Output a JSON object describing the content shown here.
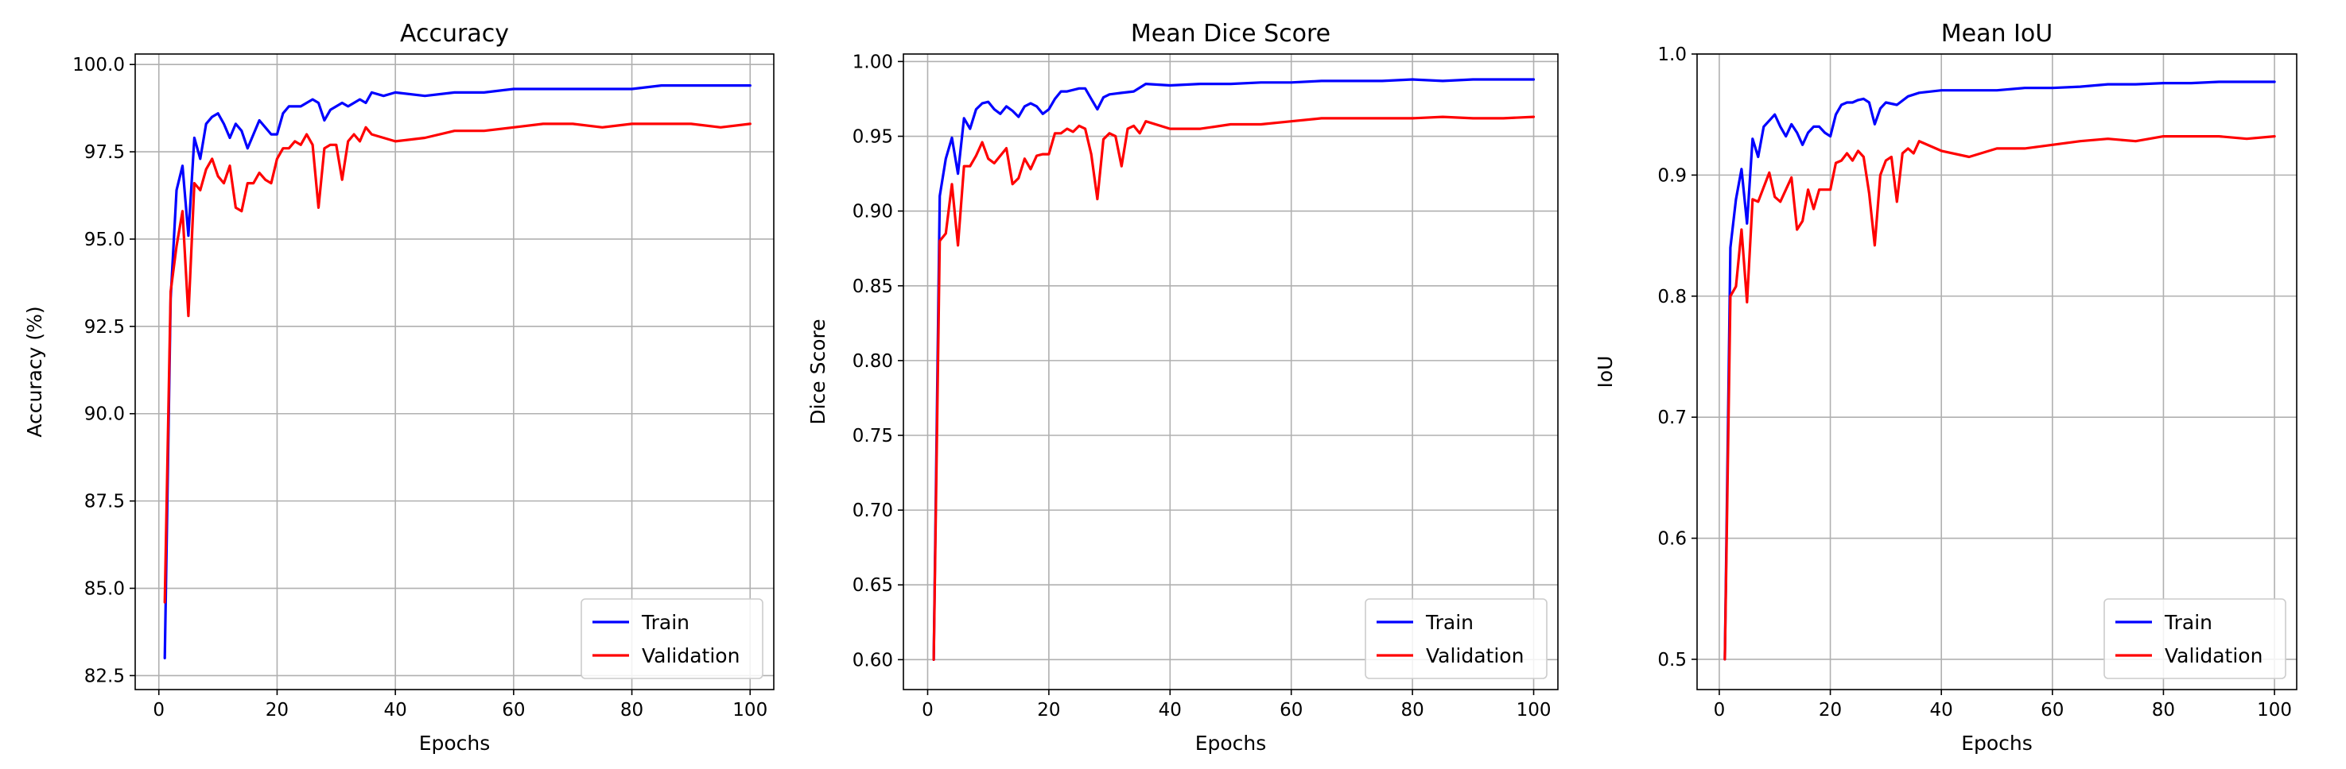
{
  "chart_data": [
    {
      "type": "line",
      "title": "Accuracy",
      "xlabel": "Epochs",
      "ylabel": "Accuracy (%)",
      "xlim": [
        -4,
        104
      ],
      "ylim": [
        82.1,
        100.3
      ],
      "xticks": [
        0,
        20,
        40,
        60,
        80,
        100
      ],
      "xtick_labels": [
        "0",
        "20",
        "40",
        "60",
        "80",
        "100"
      ],
      "yticks": [
        82.5,
        85.0,
        87.5,
        90.0,
        92.5,
        95.0,
        97.5,
        100.0
      ],
      "ytick_labels": [
        "82.5",
        "85.0",
        "87.5",
        "90.0",
        "92.5",
        "95.0",
        "97.5",
        "100.0"
      ],
      "grid": true,
      "legend_position": "lower-right",
      "series": [
        {
          "name": "Train",
          "color": "#0000ff",
          "x": [
            1,
            2,
            3,
            4,
            5,
            6,
            7,
            8,
            9,
            10,
            11,
            12,
            13,
            14,
            15,
            16,
            17,
            18,
            19,
            20,
            21,
            22,
            23,
            24,
            25,
            26,
            27,
            28,
            29,
            30,
            31,
            32,
            33,
            34,
            35,
            36,
            38,
            40,
            45,
            50,
            55,
            60,
            65,
            70,
            75,
            80,
            85,
            90,
            95,
            100
          ],
          "y": [
            83.0,
            93.3,
            96.4,
            97.1,
            95.1,
            97.9,
            97.3,
            98.3,
            98.5,
            98.6,
            98.3,
            97.9,
            98.3,
            98.1,
            97.6,
            98.0,
            98.4,
            98.2,
            98.0,
            98.0,
            98.6,
            98.8,
            98.8,
            98.8,
            98.9,
            99.0,
            98.9,
            98.4,
            98.7,
            98.8,
            98.9,
            98.8,
            98.9,
            99.0,
            98.9,
            99.2,
            99.1,
            99.2,
            99.1,
            99.2,
            99.2,
            99.3,
            99.3,
            99.3,
            99.3,
            99.3,
            99.4,
            99.4,
            99.4,
            99.4
          ]
        },
        {
          "name": "Validation",
          "color": "#ff0000",
          "x": [
            1,
            2,
            3,
            4,
            5,
            6,
            7,
            8,
            9,
            10,
            11,
            12,
            13,
            14,
            15,
            16,
            17,
            18,
            19,
            20,
            21,
            22,
            23,
            24,
            25,
            26,
            27,
            28,
            29,
            30,
            31,
            32,
            33,
            34,
            35,
            36,
            38,
            40,
            45,
            50,
            55,
            60,
            65,
            70,
            75,
            80,
            85,
            90,
            95,
            100
          ],
          "y": [
            84.6,
            93.5,
            94.8,
            95.8,
            92.8,
            96.6,
            96.4,
            97.0,
            97.3,
            96.8,
            96.6,
            97.1,
            95.9,
            95.8,
            96.6,
            96.6,
            96.9,
            96.7,
            96.6,
            97.3,
            97.6,
            97.6,
            97.8,
            97.7,
            98.0,
            97.7,
            95.9,
            97.6,
            97.7,
            97.7,
            96.7,
            97.8,
            98.0,
            97.8,
            98.2,
            98.0,
            97.9,
            97.8,
            97.9,
            98.1,
            98.1,
            98.2,
            98.3,
            98.3,
            98.2,
            98.3,
            98.3,
            98.3,
            98.2,
            98.3
          ]
        }
      ]
    },
    {
      "type": "line",
      "title": "Mean Dice Score",
      "xlabel": "Epochs",
      "ylabel": "Dice Score",
      "xlim": [
        -4,
        104
      ],
      "ylim": [
        0.58,
        1.005
      ],
      "xticks": [
        0,
        20,
        40,
        60,
        80,
        100
      ],
      "xtick_labels": [
        "0",
        "20",
        "40",
        "60",
        "80",
        "100"
      ],
      "yticks": [
        0.6,
        0.65,
        0.7,
        0.75,
        0.8,
        0.85,
        0.9,
        0.95,
        1.0
      ],
      "ytick_labels": [
        "0.60",
        "0.65",
        "0.70",
        "0.75",
        "0.80",
        "0.85",
        "0.90",
        "0.95",
        "1.00"
      ],
      "grid": true,
      "legend_position": "lower-right",
      "series": [
        {
          "name": "Train",
          "color": "#0000ff",
          "x": [
            1,
            2,
            3,
            4,
            5,
            6,
            7,
            8,
            9,
            10,
            11,
            12,
            13,
            14,
            15,
            16,
            17,
            18,
            19,
            20,
            21,
            22,
            23,
            24,
            25,
            26,
            27,
            28,
            29,
            30,
            32,
            34,
            36,
            40,
            45,
            50,
            55,
            60,
            65,
            70,
            75,
            80,
            85,
            90,
            95,
            100
          ],
          "y": [
            0.6,
            0.91,
            0.935,
            0.949,
            0.925,
            0.962,
            0.955,
            0.968,
            0.972,
            0.973,
            0.968,
            0.965,
            0.97,
            0.967,
            0.963,
            0.97,
            0.972,
            0.97,
            0.965,
            0.968,
            0.975,
            0.98,
            0.98,
            0.981,
            0.982,
            0.982,
            0.975,
            0.968,
            0.976,
            0.978,
            0.979,
            0.98,
            0.985,
            0.984,
            0.985,
            0.985,
            0.986,
            0.986,
            0.987,
            0.987,
            0.987,
            0.988,
            0.987,
            0.988,
            0.988,
            0.988
          ]
        },
        {
          "name": "Validation",
          "color": "#ff0000",
          "x": [
            1,
            2,
            3,
            4,
            5,
            6,
            7,
            8,
            9,
            10,
            11,
            12,
            13,
            14,
            15,
            16,
            17,
            18,
            19,
            20,
            21,
            22,
            23,
            24,
            25,
            26,
            27,
            28,
            29,
            30,
            31,
            32,
            33,
            34,
            35,
            36,
            40,
            45,
            50,
            55,
            60,
            65,
            70,
            75,
            80,
            85,
            90,
            95,
            100
          ],
          "y": [
            0.6,
            0.88,
            0.885,
            0.918,
            0.877,
            0.93,
            0.93,
            0.937,
            0.946,
            0.935,
            0.932,
            0.937,
            0.942,
            0.918,
            0.922,
            0.935,
            0.928,
            0.937,
            0.938,
            0.938,
            0.952,
            0.952,
            0.955,
            0.953,
            0.957,
            0.955,
            0.938,
            0.908,
            0.948,
            0.952,
            0.95,
            0.93,
            0.955,
            0.957,
            0.952,
            0.96,
            0.955,
            0.955,
            0.958,
            0.958,
            0.96,
            0.962,
            0.962,
            0.962,
            0.962,
            0.963,
            0.962,
            0.962,
            0.963
          ]
        }
      ]
    },
    {
      "type": "line",
      "title": "Mean IoU",
      "xlabel": "Epochs",
      "ylabel": "IoU",
      "xlim": [
        -4,
        104
      ],
      "ylim": [
        0.475,
        1.0
      ],
      "xticks": [
        0,
        20,
        40,
        60,
        80,
        100
      ],
      "xtick_labels": [
        "0",
        "20",
        "40",
        "60",
        "80",
        "100"
      ],
      "yticks": [
        0.5,
        0.6,
        0.7,
        0.8,
        0.9,
        1.0
      ],
      "ytick_labels": [
        "0.5",
        "0.6",
        "0.7",
        "0.8",
        "0.9",
        "1.0"
      ],
      "grid": true,
      "legend_position": "lower-right",
      "series": [
        {
          "name": "Train",
          "color": "#0000ff",
          "x": [
            1,
            2,
            3,
            4,
            5,
            6,
            7,
            8,
            9,
            10,
            11,
            12,
            13,
            14,
            15,
            16,
            17,
            18,
            19,
            20,
            21,
            22,
            23,
            24,
            25,
            26,
            27,
            28,
            29,
            30,
            32,
            34,
            36,
            40,
            45,
            50,
            55,
            60,
            65,
            70,
            75,
            80,
            85,
            90,
            95,
            100
          ],
          "y": [
            0.5,
            0.84,
            0.88,
            0.905,
            0.86,
            0.93,
            0.915,
            0.94,
            0.945,
            0.95,
            0.94,
            0.932,
            0.942,
            0.935,
            0.925,
            0.935,
            0.94,
            0.94,
            0.935,
            0.932,
            0.95,
            0.958,
            0.96,
            0.96,
            0.962,
            0.963,
            0.96,
            0.942,
            0.955,
            0.96,
            0.958,
            0.965,
            0.968,
            0.97,
            0.97,
            0.97,
            0.972,
            0.972,
            0.973,
            0.975,
            0.975,
            0.976,
            0.976,
            0.977,
            0.977,
            0.977
          ]
        },
        {
          "name": "Validation",
          "color": "#ff0000",
          "x": [
            1,
            2,
            3,
            4,
            5,
            6,
            7,
            8,
            9,
            10,
            11,
            12,
            13,
            14,
            15,
            16,
            17,
            18,
            19,
            20,
            21,
            22,
            23,
            24,
            25,
            26,
            27,
            28,
            29,
            30,
            31,
            32,
            33,
            34,
            35,
            36,
            40,
            45,
            50,
            55,
            60,
            65,
            70,
            75,
            80,
            85,
            90,
            95,
            100
          ],
          "y": [
            0.5,
            0.8,
            0.808,
            0.855,
            0.795,
            0.88,
            0.878,
            0.89,
            0.902,
            0.882,
            0.878,
            0.888,
            0.898,
            0.855,
            0.862,
            0.888,
            0.872,
            0.888,
            0.888,
            0.888,
            0.91,
            0.912,
            0.918,
            0.912,
            0.92,
            0.915,
            0.885,
            0.842,
            0.9,
            0.912,
            0.915,
            0.878,
            0.918,
            0.922,
            0.918,
            0.928,
            0.92,
            0.915,
            0.922,
            0.922,
            0.925,
            0.928,
            0.93,
            0.928,
            0.932,
            0.932,
            0.932,
            0.93,
            0.932
          ]
        }
      ]
    }
  ]
}
